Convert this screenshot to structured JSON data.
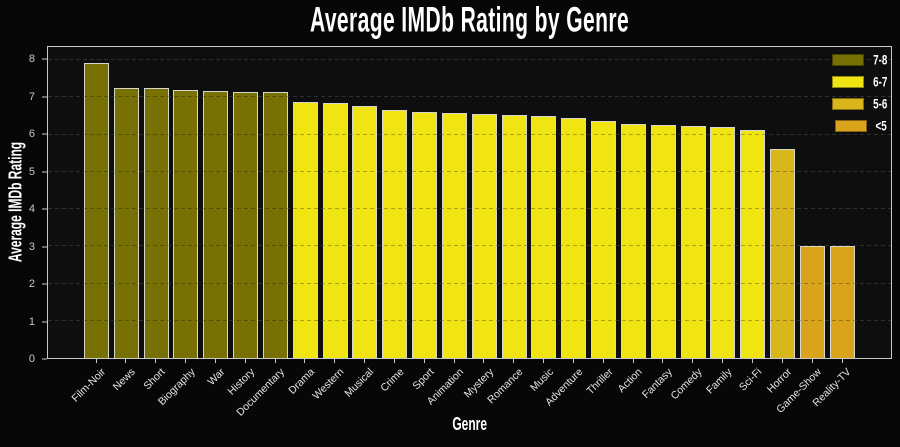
{
  "chart_data": {
    "type": "bar",
    "title": "Average IMDb Rating by Genre",
    "xlabel": "Genre",
    "ylabel": "Average IMDb Rating",
    "ylim": [
      0,
      8.35
    ],
    "yticks": [
      0,
      1,
      2,
      3,
      4,
      5,
      6,
      7,
      8
    ],
    "grid": "horizontal-dashed",
    "categories": [
      "Film-Noir",
      "News",
      "Short",
      "Biography",
      "War",
      "History",
      "Documentary",
      "Drama",
      "Western",
      "Musical",
      "Crime",
      "Sport",
      "Animation",
      "Mystery",
      "Romance",
      "Music",
      "Adventure",
      "Thriller",
      "Action",
      "Fantasy",
      "Comedy",
      "Family",
      "Sci-Fi",
      "Horror",
      "Game-Show",
      "Reality-TV"
    ],
    "values": [
      7.93,
      7.26,
      7.25,
      7.2,
      7.16,
      7.15,
      7.14,
      6.87,
      6.86,
      6.76,
      6.65,
      6.6,
      6.57,
      6.55,
      6.52,
      6.5,
      6.45,
      6.36,
      6.27,
      6.26,
      6.23,
      6.21,
      6.12,
      5.61,
      3.01,
      3.01
    ],
    "bands": [
      "7-8",
      "7-8",
      "7-8",
      "7-8",
      "7-8",
      "7-8",
      "7-8",
      "6-7",
      "6-7",
      "6-7",
      "6-7",
      "6-7",
      "6-7",
      "6-7",
      "6-7",
      "6-7",
      "6-7",
      "6-7",
      "6-7",
      "6-7",
      "6-7",
      "6-7",
      "6-7",
      "5-6",
      "<5",
      "<5"
    ],
    "legend": {
      "position": "upper-right",
      "entries": [
        {
          "label": "7-8",
          "color": "#777004"
        },
        {
          "label": "6-7",
          "color": "#f0e413"
        },
        {
          "label": "5-6",
          "color": "#d9b61a"
        },
        {
          "label": "<5",
          "color": "#d9a31c"
        }
      ]
    }
  },
  "style": {
    "background": "#070707",
    "plot_background": "#0e0e0e",
    "axis_color": "#c9c9c9",
    "grid_color": "#3f3f3f",
    "bar_edge_color": "#d6d6ca",
    "tick_text_color": "#c8c8c8",
    "text_color": "#ffffff"
  }
}
